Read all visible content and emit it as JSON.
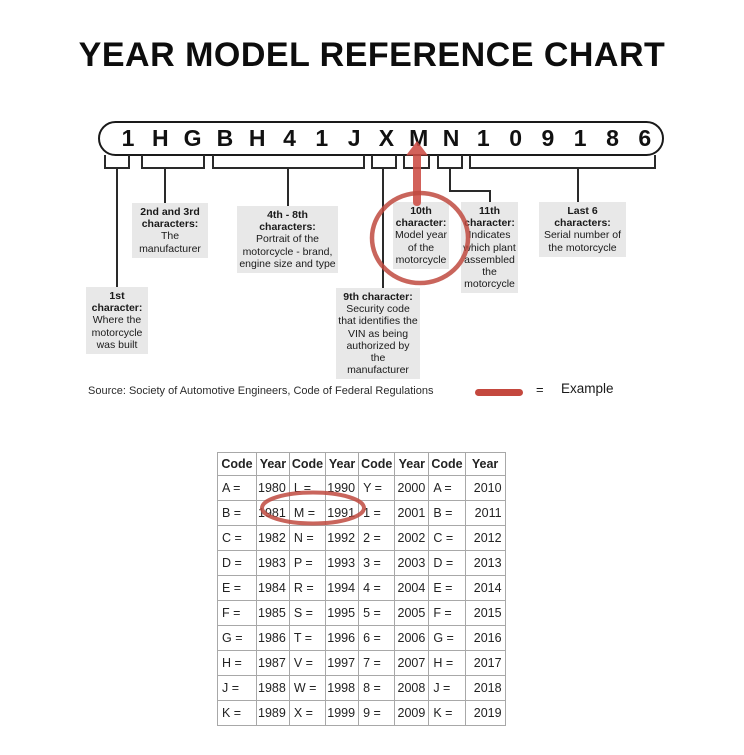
{
  "title": "YEAR MODEL REFERENCE CHART",
  "vin": {
    "characters": [
      "1",
      "H",
      "G",
      "B",
      "H",
      "4",
      "1",
      "J",
      "X",
      "M",
      "N",
      "1",
      "0",
      "9",
      "1",
      "8",
      "6"
    ]
  },
  "callouts": {
    "first_char": {
      "bold_lines": [
        "1st",
        "character:"
      ],
      "lines": [
        "Where the",
        "motorcycle",
        "was built"
      ]
    },
    "chars_2_3": {
      "bold_lines": [
        "2nd and 3rd",
        "characters:"
      ],
      "lines": [
        "The",
        "manufacturer"
      ]
    },
    "chars_4_8": {
      "bold_lines": [
        "4th - 8th",
        "characters:"
      ],
      "lines": [
        "Portrait of the",
        "motorcycle - brand,",
        "engine size and type"
      ]
    },
    "char_9": {
      "bold_lines": [
        "9th character:"
      ],
      "lines": [
        "Security code",
        "that identifies the",
        "VIN as being",
        "authorized by the",
        "manufacturer"
      ]
    },
    "char_10": {
      "bold_lines": [
        "10th",
        "character:"
      ],
      "lines": [
        "Model year",
        "of the",
        "motorcycle"
      ]
    },
    "char_11": {
      "bold_lines": [
        "11th",
        "character:"
      ],
      "lines": [
        "Indicates",
        "which plant",
        "assembled",
        "the",
        "motorcycle"
      ]
    },
    "last_6": {
      "bold_lines": [
        "Last 6",
        "characters:"
      ],
      "lines": [
        "Serial number of",
        "the motorcycle"
      ]
    }
  },
  "legend": {
    "source_text": "Source:  Society of Automotive Engineers, Code of Federal Regulations",
    "equals_sign": "=",
    "example_label": "Example"
  },
  "chart_data": {
    "type": "table",
    "title": "YEAR MODEL REFERENCE CHART",
    "headers": [
      "Code",
      "Year",
      "Code",
      "Year",
      "Code",
      "Year",
      "Code",
      "Year"
    ],
    "rows": [
      [
        "A =",
        "1980",
        "L =",
        "1990",
        "Y =",
        "2000",
        "A =",
        "2010"
      ],
      [
        "B =",
        "1981",
        "M =",
        "1991",
        "1 =",
        "2001",
        "B =",
        "2011"
      ],
      [
        "C =",
        "1982",
        "N =",
        "1992",
        "2 =",
        "2002",
        "C =",
        "2012"
      ],
      [
        "D =",
        "1983",
        "P =",
        "1993",
        "3 =",
        "2003",
        "D =",
        "2013"
      ],
      [
        "E =",
        "1984",
        "R =",
        "1994",
        "4 =",
        "2004",
        "E =",
        "2014"
      ],
      [
        "F =",
        "1985",
        "S =",
        "1995",
        "5 =",
        "2005",
        "F =",
        "2015"
      ],
      [
        "G =",
        "1986",
        "T =",
        "1996",
        "6 =",
        "2006",
        "G =",
        "2016"
      ],
      [
        "H =",
        "1987",
        "V =",
        "1997",
        "7 =",
        "2007",
        "H =",
        "2017"
      ],
      [
        "J =",
        "1988",
        "W =",
        "1998",
        "8 =",
        "2008",
        "J =",
        "2018"
      ],
      [
        "K =",
        "1989",
        "X =",
        "1999",
        "9 =",
        "2009",
        "K =",
        "2019"
      ]
    ],
    "annotations": [
      "Red arrow points up at VIN character M (10th character)",
      "Red circle around the 10th character callout box",
      "Red circle around table cells M = 1991"
    ]
  },
  "colors": {
    "example_red": "#c4483e",
    "callout_bg": "#e8e8e8",
    "table_border": "#a8a8a8",
    "text": "#1a1a1a"
  }
}
